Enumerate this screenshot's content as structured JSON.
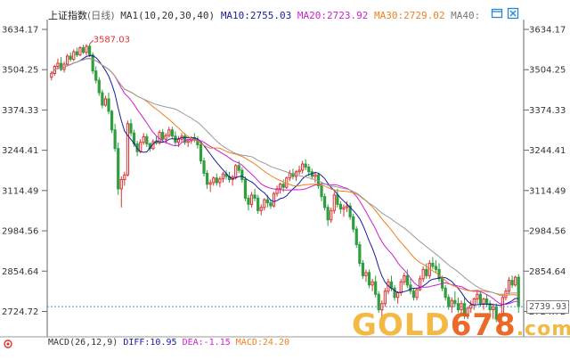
{
  "header": {
    "index_name": "上证指数",
    "period": "(日线)",
    "ma_combo": "MA1(10,20,30,40)",
    "ma10": "MA10:2755.03",
    "ma20": "MA20:2723.92",
    "ma30": "MA30:2729.02",
    "ma40": "MA40:"
  },
  "macd": {
    "label": "MACD(26,12,9)",
    "diff": "DIFF:10.95",
    "dea": "DEA:-1.15",
    "macd": "MACD:24.20"
  },
  "watermark": {
    "part1": "GOLD",
    "part2": "678",
    "part3": ".com"
  },
  "colors": {
    "up": "#e03030",
    "down": "#2e9e3e",
    "ma10": "#1a1aa0",
    "ma20": "#d020d0",
    "ma30": "#f08020",
    "ma40": "#999999",
    "crosshair": "#3aa0d0"
  },
  "icons": [
    "window-icon",
    "close-icon"
  ],
  "chart_data": {
    "type": "candlestick",
    "yaxis_ticks": [
      3634.17,
      3504.25,
      3374.33,
      3244.41,
      3114.49,
      2984.56,
      2854.64,
      2724.72
    ],
    "ylim": [
      2660,
      3660
    ],
    "annotations": [
      {
        "text": "3587.03",
        "value": 3587.03,
        "bar": 12
      },
      {
        "text": "2739.93",
        "value": 2739.93,
        "kind": "current-price"
      }
    ],
    "current_price": 2739.93,
    "ohlc": [
      [
        3480,
        3500,
        3470,
        3492
      ],
      [
        3492,
        3520,
        3485,
        3515
      ],
      [
        3515,
        3540,
        3505,
        3525
      ],
      [
        3525,
        3545,
        3500,
        3505
      ],
      [
        3505,
        3530,
        3495,
        3522
      ],
      [
        3522,
        3555,
        3515,
        3548
      ],
      [
        3548,
        3560,
        3530,
        3538
      ],
      [
        3538,
        3570,
        3532,
        3562
      ],
      [
        3562,
        3575,
        3545,
        3552
      ],
      [
        3552,
        3580,
        3548,
        3575
      ],
      [
        3575,
        3585,
        3555,
        3560
      ],
      [
        3560,
        3587,
        3550,
        3580
      ],
      [
        3580,
        3587,
        3545,
        3552
      ],
      [
        3552,
        3560,
        3490,
        3500
      ],
      [
        3500,
        3515,
        3460,
        3470
      ],
      [
        3470,
        3480,
        3420,
        3430
      ],
      [
        3430,
        3440,
        3380,
        3390
      ],
      [
        3390,
        3420,
        3385,
        3410
      ],
      [
        3410,
        3430,
        3360,
        3370
      ],
      [
        3370,
        3375,
        3300,
        3310
      ],
      [
        3310,
        3330,
        3240,
        3250
      ],
      [
        3250,
        3270,
        3100,
        3120
      ],
      [
        3120,
        3160,
        3060,
        3150
      ],
      [
        3150,
        3175,
        3130,
        3165
      ],
      [
        3165,
        3340,
        3160,
        3330
      ],
      [
        3330,
        3345,
        3290,
        3300
      ],
      [
        3300,
        3310,
        3255,
        3265
      ],
      [
        3265,
        3275,
        3225,
        3240
      ],
      [
        3240,
        3280,
        3235,
        3270
      ],
      [
        3270,
        3300,
        3262,
        3288
      ],
      [
        3288,
        3298,
        3255,
        3265
      ],
      [
        3265,
        3270,
        3240,
        3250
      ],
      [
        3250,
        3280,
        3245,
        3272
      ],
      [
        3272,
        3290,
        3262,
        3268
      ],
      [
        3268,
        3310,
        3262,
        3302
      ],
      [
        3302,
        3312,
        3270,
        3280
      ],
      [
        3280,
        3300,
        3265,
        3292
      ],
      [
        3292,
        3320,
        3285,
        3310
      ],
      [
        3310,
        3320,
        3280,
        3290
      ],
      [
        3290,
        3305,
        3260,
        3270
      ],
      [
        3270,
        3290,
        3255,
        3280
      ],
      [
        3280,
        3300,
        3270,
        3290
      ],
      [
        3290,
        3300,
        3262,
        3270
      ],
      [
        3270,
        3282,
        3255,
        3275
      ],
      [
        3275,
        3290,
        3265,
        3285
      ],
      [
        3285,
        3300,
        3270,
        3280
      ],
      [
        3280,
        3290,
        3250,
        3262
      ],
      [
        3262,
        3270,
        3200,
        3210
      ],
      [
        3210,
        3220,
        3160,
        3170
      ],
      [
        3170,
        3180,
        3120,
        3135
      ],
      [
        3135,
        3150,
        3110,
        3140
      ],
      [
        3140,
        3160,
        3130,
        3155
      ],
      [
        3155,
        3170,
        3130,
        3140
      ],
      [
        3140,
        3160,
        3125,
        3152
      ],
      [
        3152,
        3175,
        3140,
        3168
      ],
      [
        3168,
        3180,
        3150,
        3160
      ],
      [
        3160,
        3175,
        3140,
        3150
      ],
      [
        3150,
        3165,
        3130,
        3158
      ],
      [
        3158,
        3200,
        3150,
        3195
      ],
      [
        3195,
        3210,
        3170,
        3180
      ],
      [
        3180,
        3190,
        3140,
        3150
      ],
      [
        3150,
        3160,
        3080,
        3090
      ],
      [
        3090,
        3100,
        3050,
        3070
      ],
      [
        3070,
        3110,
        3060,
        3100
      ],
      [
        3100,
        3120,
        3080,
        3090
      ],
      [
        3090,
        3100,
        3040,
        3050
      ],
      [
        3050,
        3070,
        3035,
        3060
      ],
      [
        3060,
        3090,
        3050,
        3085
      ],
      [
        3085,
        3100,
        3060,
        3075
      ],
      [
        3075,
        3085,
        3055,
        3065
      ],
      [
        3065,
        3110,
        3060,
        3105
      ],
      [
        3105,
        3130,
        3095,
        3120
      ],
      [
        3120,
        3140,
        3105,
        3135
      ],
      [
        3135,
        3150,
        3110,
        3125
      ],
      [
        3125,
        3160,
        3120,
        3155
      ],
      [
        3155,
        3180,
        3145,
        3170
      ],
      [
        3170,
        3185,
        3150,
        3160
      ],
      [
        3160,
        3180,
        3145,
        3175
      ],
      [
        3175,
        3195,
        3165,
        3180
      ],
      [
        3180,
        3210,
        3170,
        3200
      ],
      [
        3200,
        3215,
        3180,
        3190
      ],
      [
        3190,
        3200,
        3160,
        3175
      ],
      [
        3175,
        3185,
        3150,
        3160
      ],
      [
        3160,
        3175,
        3140,
        3165
      ],
      [
        3165,
        3170,
        3120,
        3130
      ],
      [
        3130,
        3140,
        3080,
        3095
      ],
      [
        3095,
        3105,
        3050,
        3060
      ],
      [
        3060,
        3070,
        3000,
        3020
      ],
      [
        3020,
        3060,
        3010,
        3050
      ],
      [
        3050,
        3110,
        3040,
        3100
      ],
      [
        3100,
        3120,
        3060,
        3070
      ],
      [
        3070,
        3080,
        3040,
        3055
      ],
      [
        3055,
        3070,
        3030,
        3060
      ],
      [
        3060,
        3080,
        3045,
        3065
      ],
      [
        3065,
        3075,
        3020,
        3030
      ],
      [
        3030,
        3040,
        2980,
        2990
      ],
      [
        2990,
        3000,
        2930,
        2940
      ],
      [
        2940,
        2950,
        2870,
        2880
      ],
      [
        2880,
        2890,
        2830,
        2840
      ],
      [
        2840,
        2860,
        2820,
        2850
      ],
      [
        2850,
        2860,
        2800,
        2810
      ],
      [
        2810,
        2830,
        2790,
        2820
      ],
      [
        2820,
        2840,
        2770,
        2780
      ],
      [
        2780,
        2790,
        2720,
        2730
      ],
      [
        2730,
        2760,
        2700,
        2750
      ],
      [
        2750,
        2800,
        2740,
        2790
      ],
      [
        2790,
        2830,
        2780,
        2820
      ],
      [
        2820,
        2840,
        2790,
        2800
      ],
      [
        2800,
        2810,
        2760,
        2770
      ],
      [
        2770,
        2790,
        2750,
        2785
      ],
      [
        2785,
        2830,
        2775,
        2820
      ],
      [
        2820,
        2850,
        2810,
        2840
      ],
      [
        2840,
        2860,
        2800,
        2810
      ],
      [
        2810,
        2830,
        2780,
        2790
      ],
      [
        2790,
        2800,
        2760,
        2770
      ],
      [
        2770,
        2800,
        2760,
        2795
      ],
      [
        2795,
        2840,
        2790,
        2830
      ],
      [
        2830,
        2870,
        2820,
        2860
      ],
      [
        2860,
        2880,
        2830,
        2840
      ],
      [
        2840,
        2890,
        2830,
        2880
      ],
      [
        2880,
        2900,
        2860,
        2870
      ],
      [
        2870,
        2890,
        2850,
        2860
      ],
      [
        2860,
        2880,
        2820,
        2830
      ],
      [
        2830,
        2840,
        2790,
        2800
      ],
      [
        2800,
        2810,
        2760,
        2770
      ],
      [
        2770,
        2780,
        2730,
        2740
      ],
      [
        2740,
        2770,
        2720,
        2760
      ],
      [
        2760,
        2790,
        2740,
        2750
      ],
      [
        2750,
        2770,
        2720,
        2730
      ],
      [
        2730,
        2760,
        2710,
        2750
      ],
      [
        2750,
        2770,
        2700,
        2710
      ],
      [
        2710,
        2740,
        2700,
        2735
      ],
      [
        2735,
        2760,
        2720,
        2745
      ],
      [
        2745,
        2770,
        2730,
        2765
      ],
      [
        2765,
        2790,
        2750,
        2780
      ],
      [
        2780,
        2790,
        2740,
        2750
      ],
      [
        2750,
        2770,
        2730,
        2765
      ],
      [
        2765,
        2780,
        2740,
        2750
      ],
      [
        2750,
        2760,
        2720,
        2730
      ],
      [
        2730,
        2750,
        2700,
        2740
      ],
      [
        2740,
        2750,
        2690,
        2700
      ],
      [
        2700,
        2720,
        2670,
        2715
      ],
      [
        2715,
        2780,
        2710,
        2770
      ],
      [
        2770,
        2800,
        2760,
        2790
      ],
      [
        2790,
        2835,
        2780,
        2825
      ],
      [
        2825,
        2840,
        2800,
        2810
      ],
      [
        2810,
        2840,
        2805,
        2835
      ],
      [
        2835,
        2845,
        2720,
        2740
      ]
    ]
  }
}
